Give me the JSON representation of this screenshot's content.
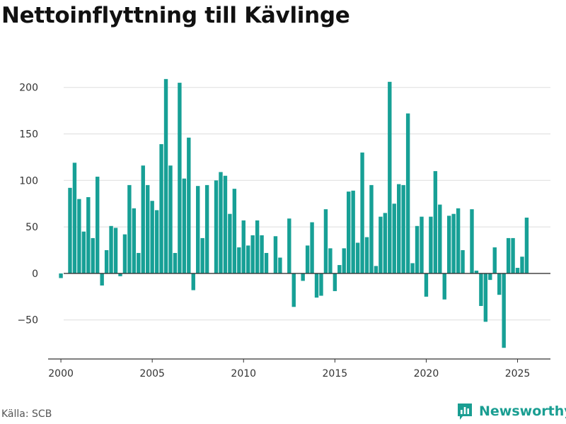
{
  "title": "Nettoinflyttning till Kävlinge",
  "source": "Källa: SCB",
  "brand": {
    "name": "Newsworthy",
    "icon": "newsworthy-logo-icon",
    "color": "#1a9e92"
  },
  "colors": {
    "bar": "#17a096",
    "grid": "#dddddd",
    "zero_line": "#333333"
  },
  "chart_data": {
    "type": "bar",
    "title": "Nettoinflyttning till Kävlinge",
    "xlabel": "",
    "ylabel": "",
    "ylim": [
      -92,
      218
    ],
    "xlim": [
      1999.3,
      2026.8
    ],
    "y_ticks": [
      -50,
      0,
      50,
      100,
      150,
      200
    ],
    "y_tick_labels": [
      "−50",
      "0",
      "50",
      "100",
      "150",
      "200"
    ],
    "x_ticks": [
      2000,
      2005,
      2010,
      2015,
      2020,
      2025
    ],
    "x_tick_labels": [
      "2000",
      "2005",
      "2010",
      "2015",
      "2020",
      "2025"
    ],
    "grid": "horizontal",
    "frequency": "quarterly",
    "x": [
      "2000-Q1",
      "2000-Q2",
      "2000-Q3",
      "2000-Q4",
      "2001-Q1",
      "2001-Q2",
      "2001-Q3",
      "2001-Q4",
      "2002-Q1",
      "2002-Q2",
      "2002-Q3",
      "2002-Q4",
      "2003-Q1",
      "2003-Q2",
      "2003-Q3",
      "2003-Q4",
      "2004-Q1",
      "2004-Q2",
      "2004-Q3",
      "2004-Q4",
      "2005-Q1",
      "2005-Q2",
      "2005-Q3",
      "2005-Q4",
      "2006-Q1",
      "2006-Q2",
      "2006-Q3",
      "2006-Q4",
      "2007-Q1",
      "2007-Q2",
      "2007-Q3",
      "2007-Q4",
      "2008-Q1",
      "2008-Q2",
      "2008-Q3",
      "2008-Q4",
      "2009-Q1",
      "2009-Q2",
      "2009-Q3",
      "2009-Q4",
      "2010-Q1",
      "2010-Q2",
      "2010-Q3",
      "2010-Q4",
      "2011-Q1",
      "2011-Q2",
      "2011-Q3",
      "2011-Q4",
      "2012-Q1",
      "2012-Q2",
      "2012-Q3",
      "2012-Q4",
      "2013-Q1",
      "2013-Q2",
      "2013-Q3",
      "2013-Q4",
      "2014-Q1",
      "2014-Q2",
      "2014-Q3",
      "2014-Q4",
      "2015-Q1",
      "2015-Q2",
      "2015-Q3",
      "2015-Q4",
      "2016-Q1",
      "2016-Q2",
      "2016-Q3",
      "2016-Q4",
      "2017-Q1",
      "2017-Q2",
      "2017-Q3",
      "2017-Q4",
      "2018-Q1",
      "2018-Q2",
      "2018-Q3",
      "2018-Q4",
      "2019-Q1",
      "2019-Q2",
      "2019-Q3",
      "2019-Q4",
      "2020-Q1",
      "2020-Q2",
      "2020-Q3",
      "2020-Q4",
      "2021-Q1",
      "2021-Q2",
      "2021-Q3",
      "2021-Q4",
      "2022-Q1",
      "2022-Q2",
      "2022-Q3",
      "2022-Q4",
      "2023-Q1",
      "2023-Q2",
      "2023-Q3",
      "2023-Q4",
      "2024-Q1",
      "2024-Q2",
      "2024-Q3",
      "2024-Q4",
      "2025-Q1",
      "2025-Q2",
      "2025-Q3",
      "2025-Q4"
    ],
    "values": [
      -5,
      null,
      92,
      119,
      80,
      45,
      82,
      38,
      104,
      -13,
      25,
      51,
      49,
      -3,
      42,
      95,
      70,
      22,
      116,
      95,
      78,
      68,
      139,
      209,
      116,
      22,
      205,
      102,
      146,
      -18,
      94,
      38,
      95,
      null,
      100,
      109,
      105,
      64,
      91,
      28,
      57,
      30,
      41,
      57,
      41,
      22,
      null,
      40,
      17,
      null,
      59,
      -36,
      null,
      -8,
      30,
      55,
      -26,
      -24,
      69,
      27,
      -19,
      9,
      27,
      88,
      89,
      33,
      130,
      39,
      95,
      8,
      61,
      65,
      206,
      75,
      96,
      95,
      172,
      11,
      51,
      61,
      -25,
      61,
      110,
      74,
      -28,
      62,
      64,
      70,
      25,
      null,
      69,
      3,
      -35,
      -52,
      -7,
      28,
      -23,
      -80,
      38,
      38,
      6,
      18,
      60,
      null
    ]
  }
}
